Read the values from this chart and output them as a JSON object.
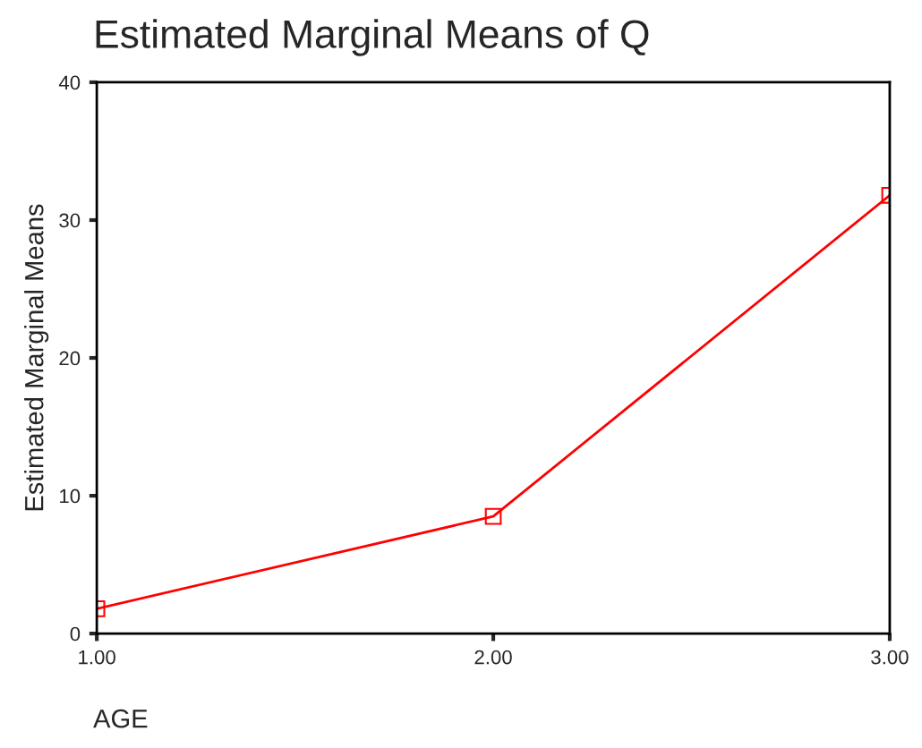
{
  "chart_data": {
    "type": "line",
    "title": "Estimated Marginal Means of Q",
    "xlabel": "AGE",
    "ylabel": "Estimated Marginal Means",
    "categories": [
      "1.00",
      "2.00",
      "3.00"
    ],
    "series": [
      {
        "color": "#ff0000",
        "values": [
          1.8,
          8.5,
          31.8
        ]
      }
    ],
    "ylim": [
      0,
      40
    ],
    "yticks": [
      0,
      10,
      20,
      30,
      40
    ],
    "grid": false,
    "legend": false,
    "marker": "square",
    "line_style": "solid"
  }
}
